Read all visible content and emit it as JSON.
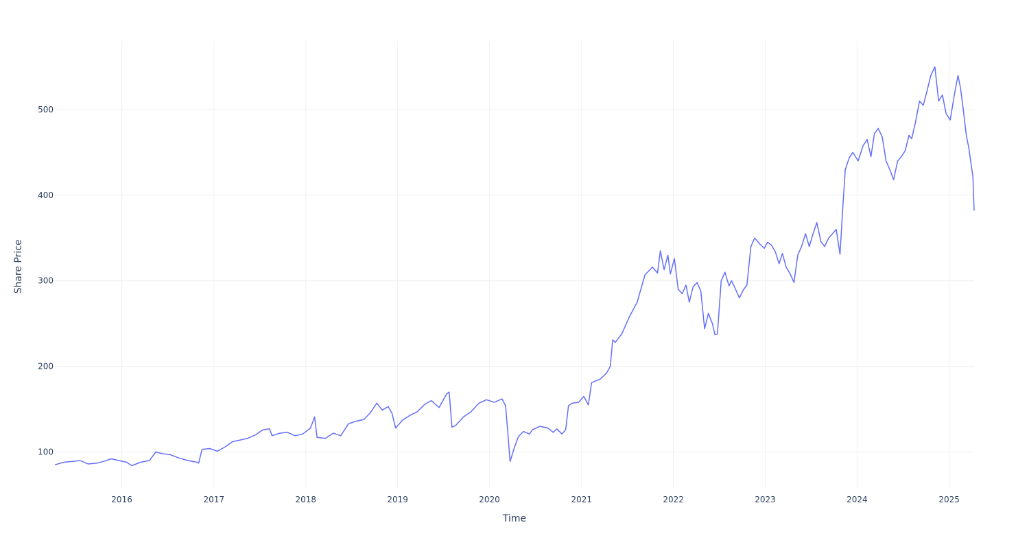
{
  "chart_data": {
    "type": "line",
    "title": "",
    "xlabel": "Time",
    "ylabel": "Share Price",
    "grid": true,
    "legend": "none",
    "x_range": [
      "2015-04-10",
      "2025-04-10"
    ],
    "y_range": [
      58,
      580
    ],
    "x_tick_labels": [
      "2016",
      "2017",
      "2018",
      "2019",
      "2020",
      "2021",
      "2022",
      "2023",
      "2024",
      "2025"
    ],
    "y_tick_values": [
      100,
      200,
      300,
      400,
      500
    ],
    "series": [
      {
        "color": "#636efa",
        "x": [
          "2015-04-10",
          "2015-05-15",
          "2015-06-20",
          "2015-07-20",
          "2015-08-20",
          "2015-09-25",
          "2015-10-20",
          "2015-11-20",
          "2015-12-20",
          "2016-01-20",
          "2016-02-10",
          "2016-03-15",
          "2016-04-20",
          "2016-05-15",
          "2016-06-10",
          "2016-07-10",
          "2016-08-15",
          "2016-09-20",
          "2016-10-25",
          "2016-11-01",
          "2016-11-15",
          "2016-12-15",
          "2017-01-15",
          "2017-02-15",
          "2017-03-15",
          "2017-04-15",
          "2017-05-15",
          "2017-06-15",
          "2017-07-15",
          "2017-08-10",
          "2017-08-20",
          "2017-09-20",
          "2017-10-20",
          "2017-11-20",
          "2017-12-20",
          "2018-01-20",
          "2018-02-05",
          "2018-02-15",
          "2018-03-20",
          "2018-04-20",
          "2018-05-20",
          "2018-06-20",
          "2018-07-20",
          "2018-08-20",
          "2018-09-15",
          "2018-10-10",
          "2018-11-01",
          "2018-11-25",
          "2018-12-10",
          "2018-12-24",
          "2019-01-20",
          "2019-02-20",
          "2019-03-20",
          "2019-04-20",
          "2019-05-15",
          "2019-06-15",
          "2019-07-15",
          "2019-07-25",
          "2019-08-05",
          "2019-08-20",
          "2019-09-20",
          "2019-10-20",
          "2019-11-20",
          "2019-12-20",
          "2020-01-20",
          "2020-02-20",
          "2020-03-05",
          "2020-03-12",
          "2020-03-23",
          "2020-04-10",
          "2020-04-25",
          "2020-05-15",
          "2020-06-08",
          "2020-06-20",
          "2020-07-20",
          "2020-08-20",
          "2020-09-10",
          "2020-09-25",
          "2020-10-15",
          "2020-10-30",
          "2020-11-10",
          "2020-11-25",
          "2020-12-20",
          "2021-01-10",
          "2021-01-28",
          "2021-02-10",
          "2021-02-25",
          "2021-03-15",
          "2021-04-10",
          "2021-04-25",
          "2021-05-05",
          "2021-05-15",
          "2021-06-10",
          "2021-07-10",
          "2021-08-10",
          "2021-09-10",
          "2021-10-10",
          "2021-10-30",
          "2021-11-10",
          "2021-11-25",
          "2021-12-10",
          "2021-12-20",
          "2022-01-05",
          "2022-01-20",
          "2022-02-05",
          "2022-02-20",
          "2022-03-05",
          "2022-03-20",
          "2022-04-05",
          "2022-04-20",
          "2022-05-05",
          "2022-05-20",
          "2022-06-05",
          "2022-06-15",
          "2022-06-25",
          "2022-07-10",
          "2022-07-25",
          "2022-08-10",
          "2022-08-20",
          "2022-09-05",
          "2022-09-20",
          "2022-10-05",
          "2022-10-20",
          "2022-11-05",
          "2022-11-20",
          "2022-12-10",
          "2022-12-28",
          "2023-01-10",
          "2023-01-25",
          "2023-02-10",
          "2023-02-25",
          "2023-03-10",
          "2023-03-25",
          "2023-04-10",
          "2023-04-25",
          "2023-05-10",
          "2023-05-25",
          "2023-06-10",
          "2023-06-25",
          "2023-07-10",
          "2023-07-25",
          "2023-08-10",
          "2023-08-25",
          "2023-09-10",
          "2023-09-25",
          "2023-10-10",
          "2023-10-25",
          "2023-11-05",
          "2023-11-15",
          "2023-12-01",
          "2023-12-15",
          "2024-01-05",
          "2024-01-25",
          "2024-02-10",
          "2024-02-25",
          "2024-03-10",
          "2024-03-25",
          "2024-04-10",
          "2024-04-25",
          "2024-05-10",
          "2024-05-25",
          "2024-06-10",
          "2024-06-25",
          "2024-07-10",
          "2024-07-25",
          "2024-08-05",
          "2024-08-20",
          "2024-09-05",
          "2024-09-20",
          "2024-10-05",
          "2024-10-20",
          "2024-11-05",
          "2024-11-20",
          "2024-12-05",
          "2024-12-20",
          "2025-01-05",
          "2025-01-20",
          "2025-02-05",
          "2025-02-15",
          "2025-02-25",
          "2025-03-10",
          "2025-03-20",
          "2025-04-01",
          "2025-04-05",
          "2025-04-10"
        ],
        "y": [
          85,
          88,
          89,
          90,
          86,
          87,
          89,
          92,
          90,
          88,
          84,
          88,
          90,
          100,
          98,
          97,
          93,
          90,
          88,
          87,
          103,
          104,
          101,
          106,
          112,
          114,
          116,
          120,
          126,
          127,
          119,
          122,
          123,
          119,
          121,
          128,
          141,
          117,
          116,
          122,
          119,
          133,
          136,
          138,
          146,
          157,
          149,
          153,
          145,
          128,
          137,
          143,
          147,
          156,
          160,
          152,
          168,
          170,
          129,
          131,
          141,
          147,
          157,
          161,
          158,
          162,
          154,
          130,
          89,
          106,
          118,
          124,
          121,
          126,
          130,
          128,
          123,
          127,
          121,
          126,
          154,
          157,
          158,
          165,
          155,
          181,
          183,
          185,
          192,
          200,
          231,
          228,
          238,
          258,
          275,
          307,
          316,
          309,
          335,
          313,
          330,
          308,
          326,
          290,
          285,
          295,
          275,
          293,
          298,
          288,
          244,
          262,
          250,
          237,
          238,
          300,
          310,
          294,
          300,
          290,
          280,
          289,
          295,
          340,
          350,
          343,
          338,
          345,
          342,
          334,
          320,
          332,
          316,
          308,
          298,
          330,
          340,
          355,
          340,
          355,
          368,
          346,
          340,
          350,
          355,
          360,
          331,
          385,
          430,
          444,
          450,
          440,
          458,
          465,
          445,
          472,
          478,
          468,
          440,
          430,
          418,
          440,
          445,
          452,
          470,
          466,
          485,
          510,
          505,
          522,
          540,
          550,
          510,
          517,
          495,
          488,
          515,
          540,
          525,
          502,
          470,
          455,
          430,
          422,
          382
        ]
      }
    ]
  }
}
